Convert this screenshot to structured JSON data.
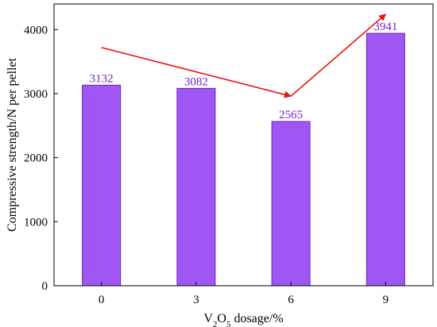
{
  "chart_data": {
    "type": "bar",
    "categories": [
      "0",
      "3",
      "6",
      "9"
    ],
    "values": [
      3132,
      3082,
      2565,
      3941
    ],
    "data_labels": [
      "3132",
      "3082",
      "2565",
      "3941"
    ],
    "xlabel": {
      "prefix": "V",
      "sub1": "2",
      "mid": "O",
      "sub2": "5",
      "suffix": " dosage/%"
    },
    "ylabel": "Compressive strength/N per pellet",
    "ylim": [
      0,
      4400
    ],
    "yticks": [
      0,
      1000,
      2000,
      3000,
      4000
    ],
    "ytick_labels": [
      "0",
      "1000",
      "2000",
      "3000",
      "4000"
    ],
    "grid": false,
    "legend": "none",
    "annotations": [
      {
        "type": "trend-arrow",
        "from": [
          0,
          3720
        ],
        "to": [
          2,
          2960
        ]
      },
      {
        "type": "trend-arrow",
        "from": [
          2,
          2960
        ],
        "to": [
          3,
          4240
        ]
      }
    ],
    "colors": {
      "bar_fill": "#a056f2",
      "bar_edge": "#6a22c0",
      "label_text": "#7a1ec9",
      "arrow": "#ee1111",
      "axis": "#000000"
    }
  }
}
